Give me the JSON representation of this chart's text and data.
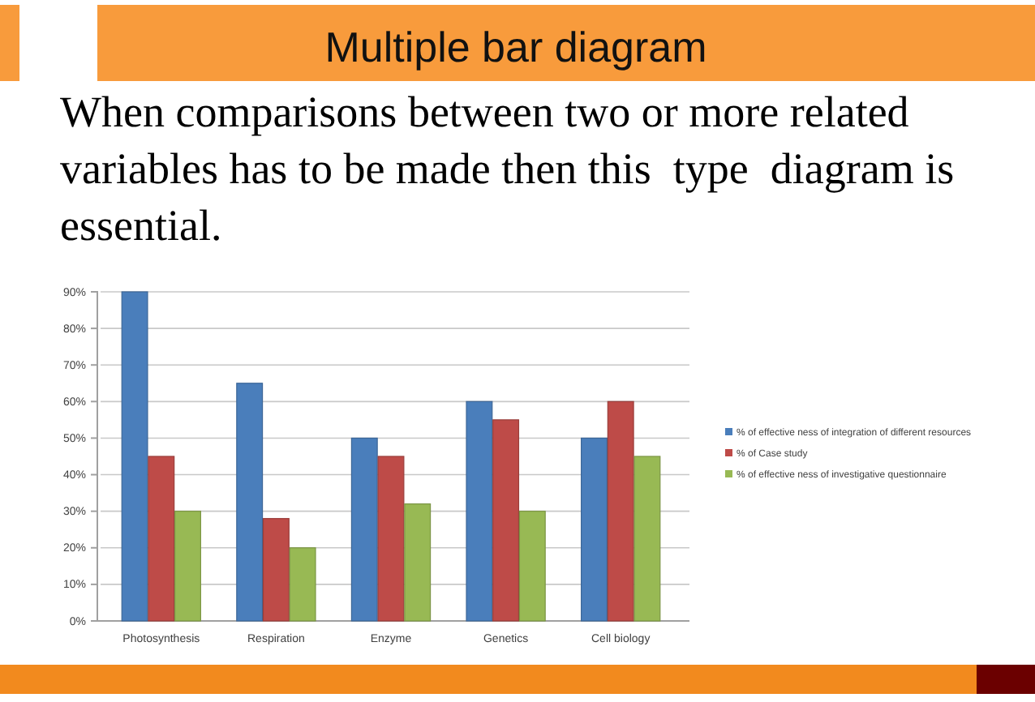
{
  "chart_data": {
    "type": "bar",
    "title": "Multiple bar diagram",
    "subtitle": "When comparisons between two or more related variables has to be made then this  type  diagram is essential.",
    "categories": [
      "Photosynthesis",
      "Respiration",
      "Enzyme",
      "Genetics",
      "Cell biology"
    ],
    "series": [
      {
        "name": "% of effective ness of integration of different resources",
        "color": "#4a7ebb",
        "values": [
          90,
          65,
          50,
          60,
          50
        ]
      },
      {
        "name": "% of Case study",
        "color": "#be4b48",
        "values": [
          45,
          28,
          45,
          55,
          60
        ]
      },
      {
        "name": "% of effective ness of investigative questionnaire",
        "color": "#98b954",
        "values": [
          30,
          20,
          32,
          30,
          45
        ]
      }
    ],
    "ylim": [
      0,
      90
    ],
    "yticks": [
      {
        "value": 0,
        "label": "0%"
      },
      {
        "value": 10,
        "label": "10%"
      },
      {
        "value": 20,
        "label": "20%"
      },
      {
        "value": 30,
        "label": "30%"
      },
      {
        "value": 40,
        "label": "40%"
      },
      {
        "value": 50,
        "label": "50%"
      },
      {
        "value": 60,
        "label": "60%"
      },
      {
        "value": 70,
        "label": "70%"
      },
      {
        "value": 80,
        "label": "80%"
      },
      {
        "value": 90,
        "label": "90%"
      }
    ],
    "grid": "y",
    "legend": "right"
  }
}
